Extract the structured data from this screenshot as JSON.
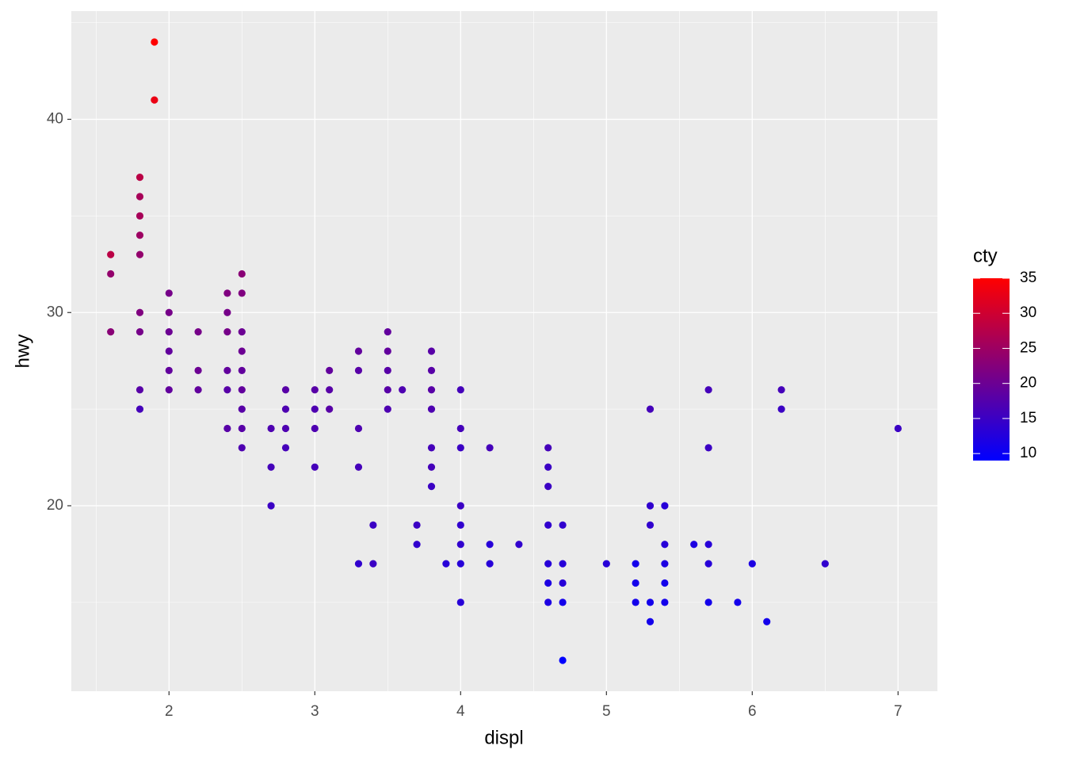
{
  "chart_data": {
    "type": "scatter",
    "x_label": "displ",
    "y_label": "hwy",
    "xlim": [
      1.33,
      7.27
    ],
    "ylim": [
      10.4,
      45.6
    ],
    "xticks": [
      2,
      3,
      4,
      5,
      6,
      7
    ],
    "yticks": [
      20,
      30,
      40
    ],
    "x_minor_ticks": [
      1.5,
      2.5,
      3.5,
      4.5,
      5.5,
      6.5
    ],
    "y_minor_ticks": [
      15,
      25,
      35,
      45
    ],
    "grid": true,
    "x": [
      1.6,
      1.6,
      1.6,
      1.8,
      1.8,
      1.8,
      1.8,
      1.8,
      1.8,
      1.8,
      1.8,
      1.8,
      1.9,
      1.9,
      2,
      2,
      2,
      2,
      2,
      2,
      2.2,
      2.2,
      2.2,
      2.4,
      2.4,
      2.4,
      2.4,
      2.4,
      2.4,
      2.5,
      2.5,
      2.5,
      2.5,
      2.5,
      2.5,
      2.5,
      2.5,
      2.5,
      2.7,
      2.7,
      2.7,
      2.8,
      2.8,
      2.8,
      2.8,
      3,
      3,
      3,
      3,
      3.1,
      3.1,
      3.1,
      3.3,
      3.3,
      3.3,
      3.3,
      3.3,
      3.4,
      3.4,
      3.5,
      3.5,
      3.5,
      3.5,
      3.5,
      3.6,
      3.7,
      3.7,
      3.8,
      3.8,
      3.8,
      3.8,
      3.8,
      3.8,
      3.8,
      3.9,
      4,
      4,
      4,
      4,
      4,
      4,
      4,
      4,
      4.2,
      4.2,
      4.2,
      4.4,
      4.6,
      4.6,
      4.6,
      4.6,
      4.6,
      4.6,
      4.6,
      4.7,
      4.7,
      4.7,
      4.7,
      4.7,
      5,
      5.2,
      5.2,
      5.2,
      5.3,
      5.3,
      5.3,
      5.3,
      5.3,
      5.4,
      5.4,
      5.4,
      5.4,
      5.4,
      5.6,
      5.7,
      5.7,
      5.7,
      5.7,
      5.7,
      5.9,
      6,
      6.1,
      6.2,
      6.2,
      6.5,
      7
    ],
    "series": [
      {
        "name": "hwy",
        "values": [
          33,
          32,
          29,
          37,
          36,
          35,
          34,
          33,
          30,
          29,
          26,
          25,
          44,
          41,
          31,
          30,
          29,
          28,
          27,
          26,
          29,
          27,
          26,
          31,
          30,
          29,
          27,
          26,
          24,
          32,
          31,
          29,
          28,
          27,
          26,
          25,
          24,
          23,
          24,
          22,
          20,
          26,
          25,
          24,
          23,
          26,
          25,
          24,
          22,
          27,
          26,
          25,
          28,
          27,
          24,
          22,
          17,
          19,
          17,
          29,
          28,
          27,
          26,
          25,
          26,
          19,
          18,
          28,
          27,
          26,
          25,
          23,
          22,
          21,
          17,
          26,
          24,
          23,
          20,
          19,
          18,
          17,
          15,
          23,
          18,
          17,
          18,
          23,
          22,
          21,
          19,
          17,
          16,
          15,
          19,
          17,
          16,
          15,
          12,
          17,
          17,
          16,
          15,
          25,
          20,
          19,
          15,
          14,
          20,
          18,
          17,
          16,
          15,
          18,
          26,
          23,
          18,
          17,
          15,
          15,
          17,
          14,
          26,
          25,
          17,
          24
        ],
        "color_values": [
          28,
          24,
          23,
          28,
          26,
          26,
          25,
          24,
          22,
          21,
          18,
          16,
          35,
          33,
          21,
          21,
          20,
          19,
          19,
          19,
          21,
          20,
          19,
          22,
          21,
          21,
          19,
          18,
          18,
          23,
          22,
          20,
          20,
          19,
          19,
          18,
          18,
          17,
          17,
          16,
          15,
          18,
          17,
          17,
          16,
          18,
          17,
          17,
          16,
          19,
          18,
          18,
          19,
          18,
          17,
          16,
          14,
          15,
          15,
          19,
          19,
          18,
          18,
          17,
          17,
          15,
          14,
          18,
          18,
          18,
          17,
          16,
          16,
          15,
          13,
          16,
          16,
          15,
          15,
          14,
          14,
          13,
          13,
          16,
          13,
          13,
          14,
          16,
          15,
          15,
          14,
          13,
          12,
          12,
          14,
          13,
          13,
          11,
          9,
          13,
          11,
          11,
          11,
          16,
          14,
          14,
          11,
          11,
          13,
          13,
          12,
          11,
          11,
          12,
          16,
          15,
          13,
          13,
          11,
          11,
          12,
          11,
          16,
          15,
          14,
          15
        ]
      }
    ],
    "color_legend": {
      "title": "cty",
      "low": "#0000ff",
      "high": "#ff0000",
      "lim": [
        9,
        35
      ],
      "ticks": [
        10,
        15,
        20,
        25,
        30,
        35
      ]
    }
  }
}
